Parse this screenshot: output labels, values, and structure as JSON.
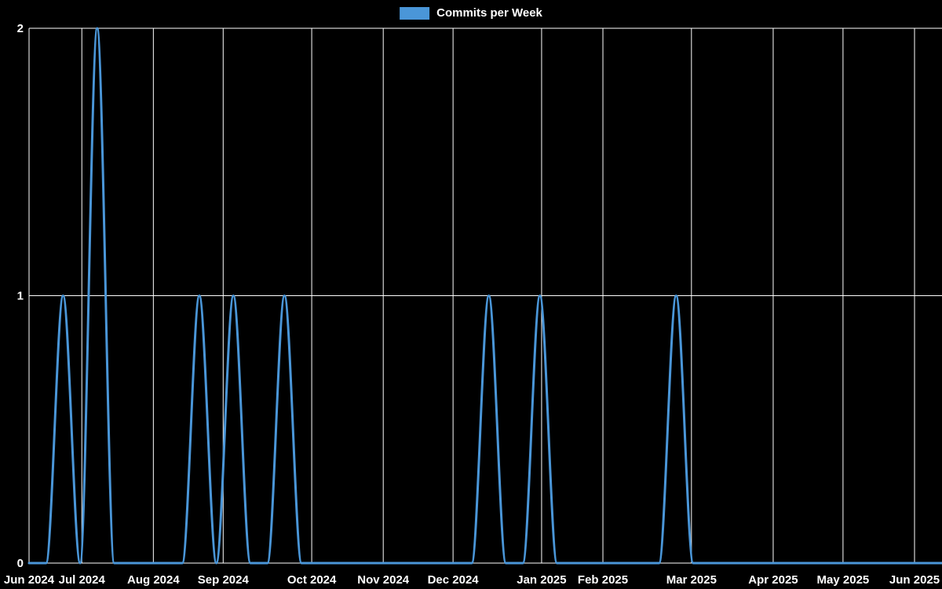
{
  "legend": {
    "label": "Commits per Week",
    "swatch_color": "#4a96d8"
  },
  "chart_data": {
    "type": "line",
    "title": "Commits per Week",
    "background_color": "#000000",
    "grid": true,
    "grid_color": "#ffffff",
    "text_color": "#ffffff",
    "line_color": "#4a96d8",
    "legend_position": "top-center",
    "x_unit": "weeks",
    "ylim": [
      0,
      2
    ],
    "y_ticks": [
      0,
      1,
      2
    ],
    "x_ticks": [
      {
        "label": "Jun 2024",
        "week": 0
      },
      {
        "label": "Jul 2024",
        "week": 3.1
      },
      {
        "label": "Aug 2024",
        "week": 7.3
      },
      {
        "label": "Sep 2024",
        "week": 11.4
      },
      {
        "label": "Oct 2024",
        "week": 16.6
      },
      {
        "label": "Nov 2024",
        "week": 20.8
      },
      {
        "label": "Dec 2024",
        "week": 24.9
      },
      {
        "label": "Jan 2025",
        "week": 30.1
      },
      {
        "label": "Feb 2025",
        "week": 33.7
      },
      {
        "label": "Mar 2025",
        "week": 38.9
      },
      {
        "label": "Apr 2025",
        "week": 43.7
      },
      {
        "label": "May 2025",
        "week": 47.8
      },
      {
        "label": "Jun 2025",
        "week": 52
      }
    ],
    "series": [
      {
        "name": "Commits per Week",
        "values": [
          0,
          0,
          1,
          0,
          2,
          0,
          0,
          0,
          0,
          0,
          1,
          0,
          1,
          0,
          0,
          1,
          0,
          0,
          0,
          0,
          0,
          0,
          0,
          0,
          0,
          0,
          0,
          1,
          0,
          0,
          1,
          0,
          0,
          0,
          0,
          0,
          0,
          0,
          1,
          0,
          0,
          0,
          0,
          0,
          0,
          0,
          0,
          0,
          0,
          0,
          0,
          0,
          0,
          0,
          0
        ]
      }
    ]
  }
}
